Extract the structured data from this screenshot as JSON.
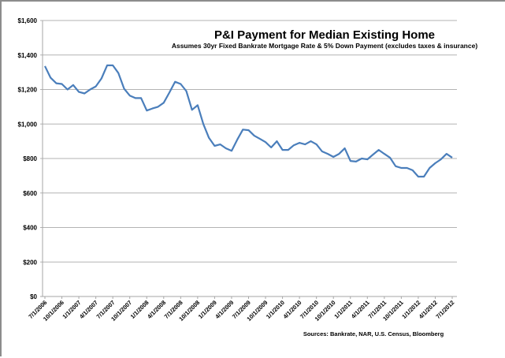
{
  "chart_data": {
    "type": "line",
    "title": "P&I Payment for Median Existing Home",
    "subtitle": "Assumes 30yr Fixed Bankrate Mortgage Rate & 5% Down Payment (excludes taxes & insurance)",
    "xlabel": "",
    "ylabel": "",
    "ylim": [
      0,
      1600
    ],
    "y_ticks": [
      "$0",
      "$200",
      "$400",
      "$600",
      "$800",
      "$1,000",
      "$1,200",
      "$1,400",
      "$1,600"
    ],
    "y_tick_values": [
      0,
      200,
      400,
      600,
      800,
      1000,
      1200,
      1400,
      1600
    ],
    "x_tick_labels": [
      "7/1/2006",
      "10/1/2006",
      "1/1/2007",
      "4/1/2007",
      "7/1/2007",
      "10/1/2007",
      "1/1/2008",
      "4/1/2008",
      "7/1/2008",
      "10/1/2008",
      "1/1/2009",
      "4/1/2009",
      "7/1/2009",
      "10/1/2009",
      "1/1/2010",
      "4/1/2010",
      "7/1/2010",
      "10/1/2010",
      "1/1/2011",
      "4/1/2011",
      "7/1/2011",
      "10/1/2011",
      "1/1/2012",
      "4/1/2012",
      "7/1/2012"
    ],
    "grid": true,
    "legend": "none",
    "line_color": "#4a7ebb",
    "x_start": "7/1/2006",
    "x_frequency": "monthly",
    "series": [
      {
        "name": "P&I Payment",
        "values": [
          1336,
          1268,
          1236,
          1232,
          1200,
          1226,
          1186,
          1177,
          1200,
          1218,
          1264,
          1340,
          1340,
          1295,
          1205,
          1165,
          1150,
          1150,
          1078,
          1090,
          1100,
          1123,
          1182,
          1245,
          1232,
          1191,
          1082,
          1109,
          1000,
          920,
          873,
          882,
          859,
          845,
          909,
          968,
          964,
          932,
          914,
          895,
          864,
          900,
          850,
          850,
          877,
          891,
          882,
          900,
          882,
          841,
          827,
          809,
          827,
          859,
          786,
          782,
          800,
          795,
          823,
          850,
          827,
          805,
          755,
          745,
          745,
          732,
          695,
          695,
          745,
          773,
          795,
          827,
          805
        ]
      }
    ],
    "source": "Sources: Bankrate, NAR, U.S. Census, Bloomberg"
  }
}
